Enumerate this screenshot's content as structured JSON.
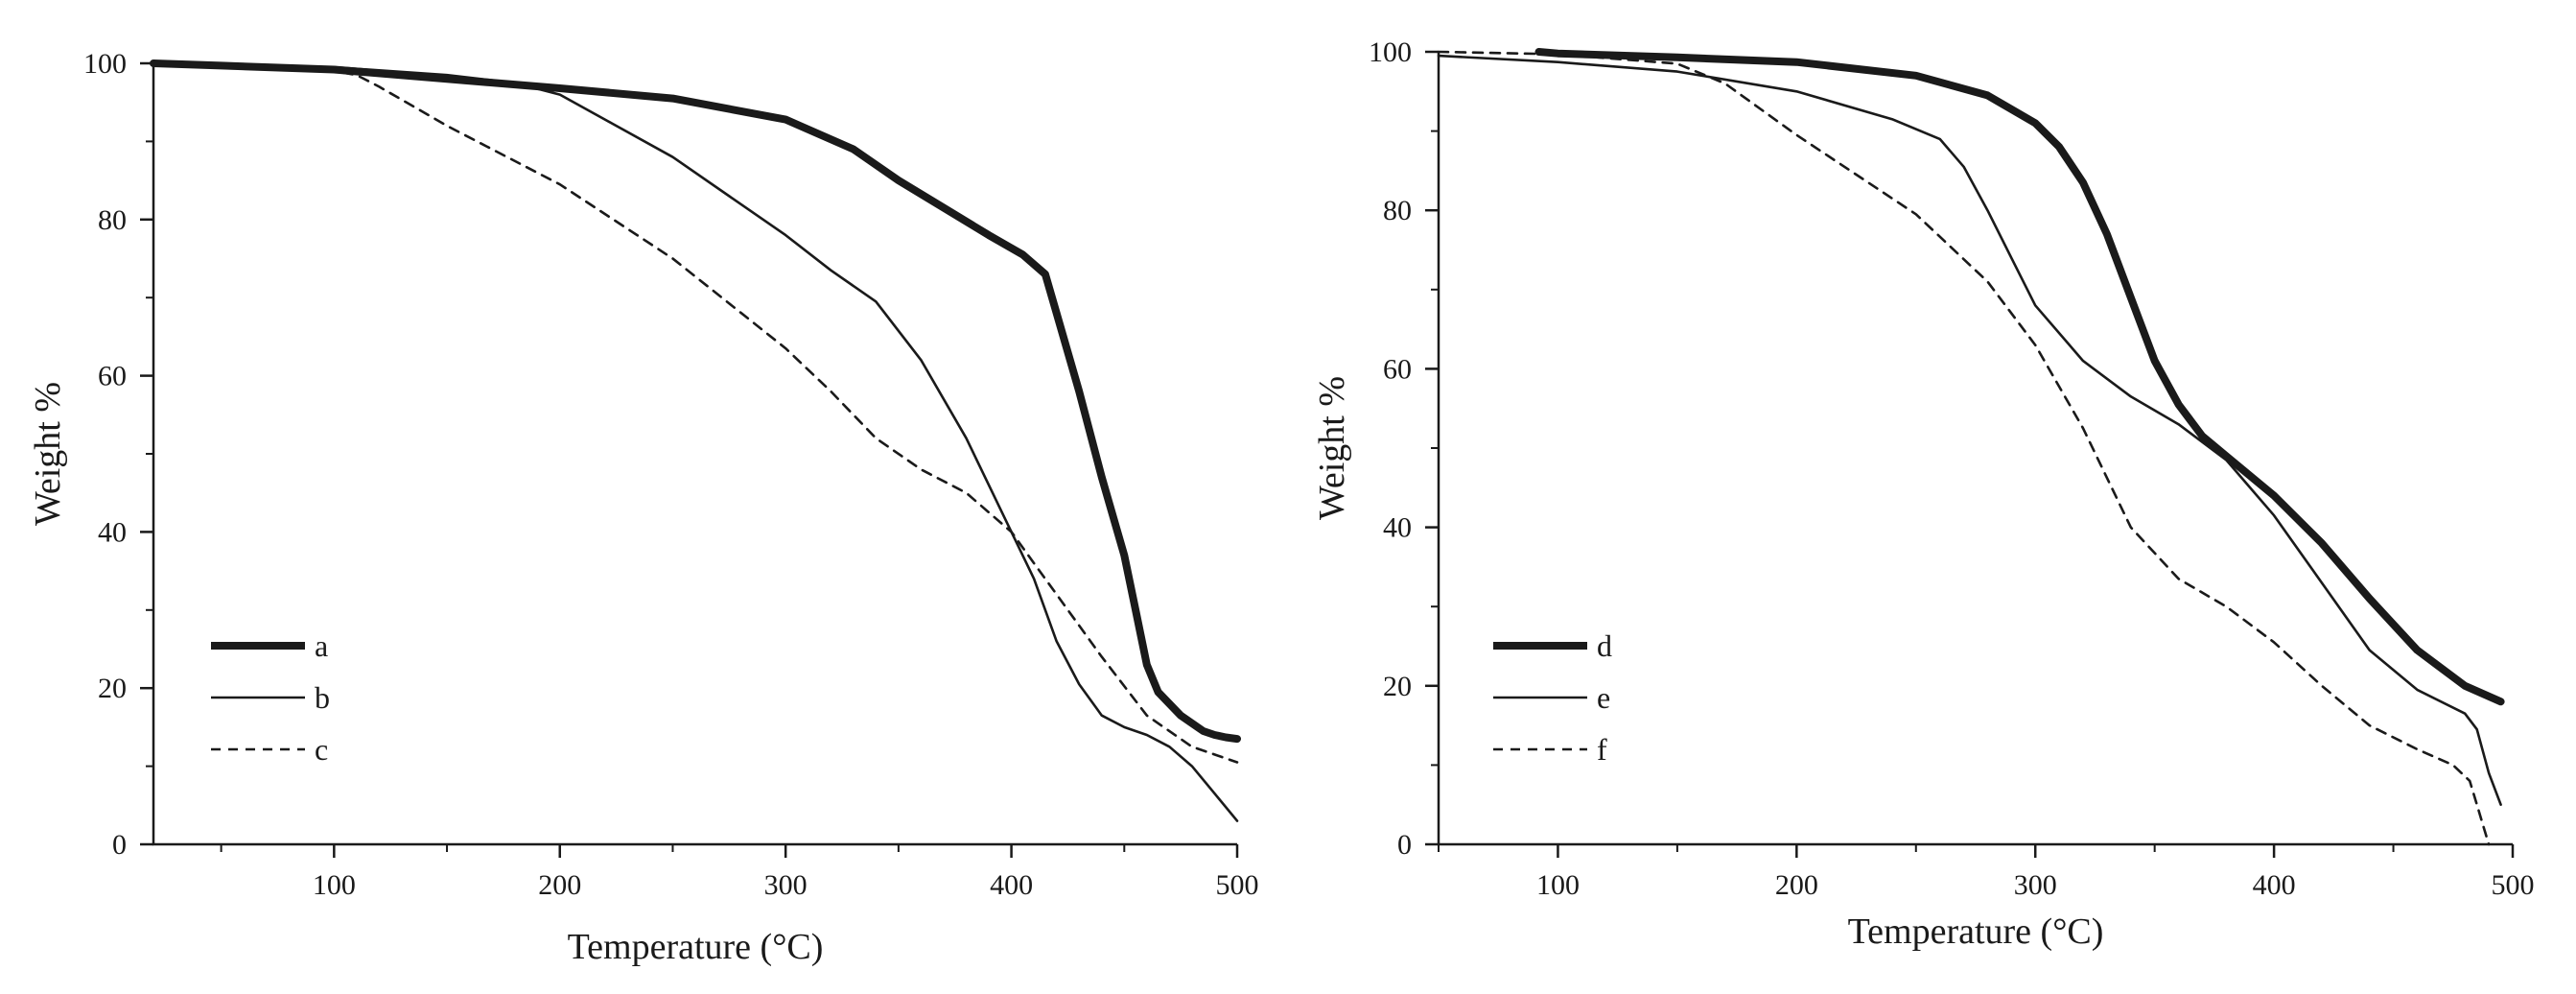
{
  "colors": {
    "ink": "#1a1a1a",
    "background": "#ffffff"
  },
  "chart_data": [
    {
      "type": "line",
      "title": "",
      "xlabel": "Temperature (°C)",
      "ylabel": "Weight %",
      "xlim": [
        20,
        500
      ],
      "ylim": [
        0,
        100
      ],
      "xticks": [
        100,
        200,
        300,
        400,
        500
      ],
      "yticks": [
        0,
        20,
        40,
        60,
        80,
        100
      ],
      "grid": false,
      "legend_position": "bottom-left",
      "series": [
        {
          "name": "a",
          "style": "thick-solid",
          "x": [
            20,
            50,
            100,
            150,
            200,
            250,
            300,
            330,
            350,
            370,
            390,
            405,
            415,
            420,
            430,
            440,
            450,
            455,
            460,
            465,
            475,
            485,
            490,
            495,
            500
          ],
          "y": [
            100,
            99.7,
            99.2,
            98,
            96.8,
            95.5,
            92.8,
            89,
            85,
            81.5,
            78,
            75.5,
            73,
            68,
            58,
            47,
            37,
            30,
            23,
            19.5,
            16.5,
            14.5,
            14,
            13.7,
            13.5
          ]
        },
        {
          "name": "b",
          "style": "thin-solid",
          "x": [
            20,
            50,
            100,
            150,
            180,
            200,
            250,
            300,
            320,
            340,
            360,
            380,
            400,
            410,
            420,
            430,
            440,
            450,
            460,
            470,
            480,
            490,
            500
          ],
          "y": [
            100,
            99.8,
            99.5,
            98.5,
            97.5,
            96,
            88,
            78,
            73.5,
            69.5,
            62,
            52,
            40,
            34,
            26,
            20.5,
            16.5,
            15,
            14,
            12.5,
            10,
            6.5,
            3
          ]
        },
        {
          "name": "c",
          "style": "dashed",
          "x": [
            20,
            50,
            80,
            100,
            110,
            120,
            150,
            200,
            250,
            300,
            320,
            340,
            360,
            380,
            400,
            410,
            420,
            440,
            460,
            480,
            500
          ],
          "y": [
            100,
            99.7,
            99.3,
            99,
            98.5,
            97,
            92,
            84.5,
            75,
            63.5,
            58,
            52,
            48,
            45,
            40,
            36,
            32,
            24,
            16.5,
            12.5,
            10.5
          ]
        }
      ]
    },
    {
      "type": "line",
      "title": "",
      "xlabel": "Temperature (°C)",
      "ylabel": "Weight %",
      "xlim": [
        50,
        500
      ],
      "ylim": [
        0,
        100
      ],
      "xticks": [
        100,
        200,
        300,
        400,
        500
      ],
      "yticks": [
        0,
        20,
        40,
        60,
        80,
        100
      ],
      "grid": false,
      "legend_position": "bottom-left",
      "series": [
        {
          "name": "d",
          "style": "thick-solid",
          "x": [
            92,
            100,
            150,
            200,
            250,
            280,
            300,
            310,
            320,
            330,
            340,
            350,
            360,
            370,
            380,
            400,
            420,
            440,
            460,
            480,
            495
          ],
          "y": [
            100,
            99.8,
            99.3,
            98.7,
            97,
            94.5,
            91,
            88,
            83.5,
            77,
            69,
            61,
            55.5,
            51.5,
            49,
            44,
            38,
            31,
            24.5,
            20,
            18
          ]
        },
        {
          "name": "e",
          "style": "thin-solid",
          "x": [
            50,
            100,
            150,
            200,
            240,
            260,
            270,
            280,
            290,
            300,
            320,
            340,
            360,
            380,
            400,
            420,
            440,
            460,
            480,
            485,
            490,
            495
          ],
          "y": [
            99.5,
            98.7,
            97.5,
            95,
            91.5,
            89,
            85.5,
            80,
            74,
            68,
            61,
            56.5,
            53,
            48.5,
            41.5,
            33,
            24.5,
            19.5,
            16.5,
            14.5,
            9,
            5
          ]
        },
        {
          "name": "f",
          "style": "dashed",
          "x": [
            50,
            100,
            150,
            170,
            200,
            250,
            280,
            300,
            320,
            340,
            360,
            380,
            400,
            420,
            440,
            460,
            475,
            482,
            485,
            488,
            490
          ],
          "y": [
            100,
            99.7,
            98.5,
            96,
            89.5,
            79.5,
            71,
            63,
            52.5,
            40,
            33.5,
            30,
            25.5,
            20,
            15,
            12,
            10,
            8,
            5,
            2,
            0
          ]
        }
      ]
    }
  ]
}
